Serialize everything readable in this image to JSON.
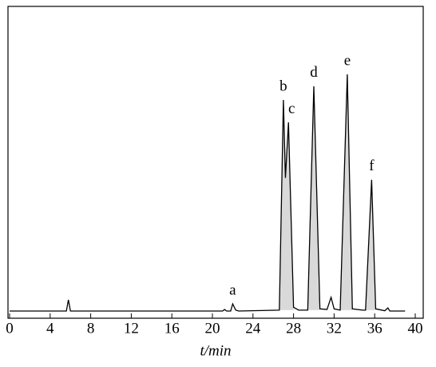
{
  "chart_data": {
    "type": "line",
    "x": [
      0,
      5.6,
      5.8,
      6.0,
      21.0,
      21.2,
      21.4,
      21.8,
      22.0,
      22.3,
      22.6,
      26.6,
      27.0,
      27.2,
      27.5,
      28.0,
      28.5,
      29.4,
      30.0,
      30.6,
      31.3,
      31.7,
      32.0,
      32.6,
      33.3,
      33.8,
      34.8,
      35.1,
      35.7,
      36.1,
      37.0,
      37.3,
      37.5,
      39.0
    ],
    "values": [
      2.3,
      2.3,
      5.9,
      2.3,
      2.3,
      2.8,
      2.3,
      2.3,
      4.6,
      2.6,
      2.3,
      2.6,
      70,
      45,
      62.8,
      3.5,
      2.6,
      2.6,
      74.4,
      3.0,
      2.8,
      6.7,
      3.0,
      2.6,
      78.2,
      3.0,
      2.6,
      2.6,
      44.4,
      3.0,
      2.4,
      3.3,
      2.3,
      2.3
    ],
    "color": "#000000",
    "shade_color": "#d9d9d9",
    "shaded": [
      [
        26.6,
        28.2
      ],
      [
        29.4,
        30.8
      ],
      [
        32.6,
        34.0
      ],
      [
        35.1,
        36.3
      ]
    ],
    "annotations": [
      {
        "text": "a",
        "x": 22.0
      },
      {
        "text": "b",
        "x": 27.0
      },
      {
        "text": "c",
        "x": 27.5
      },
      {
        "text": "d",
        "x": 30.0
      },
      {
        "text": "e",
        "x": 33.3
      },
      {
        "text": "f",
        "x": 35.7
      }
    ],
    "xlabel": "t/min",
    "xlim": [
      0,
      40
    ],
    "xticks": [
      0,
      4,
      8,
      12,
      16,
      20,
      24,
      28,
      32,
      36,
      40
    ],
    "ylim": [
      0,
      100
    ]
  }
}
